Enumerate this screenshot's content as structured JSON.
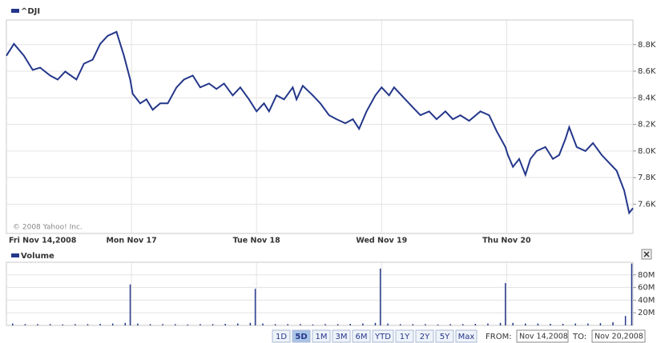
{
  "chart_data": [
    {
      "type": "line",
      "annotation": "© 2008 Yahoo! Inc.",
      "x": [
        0,
        0.06,
        0.14,
        0.21,
        0.27,
        0.35,
        0.41,
        0.47,
        0.56,
        0.62,
        0.69,
        0.75,
        0.81,
        0.88,
        0.94,
        0.99,
        1.01,
        1.07,
        1.12,
        1.17,
        1.23,
        1.29,
        1.36,
        1.42,
        1.49,
        1.55,
        1.62,
        1.68,
        1.74,
        1.81,
        1.87,
        1.94,
        2.0,
        2.06,
        2.1,
        2.16,
        2.22,
        2.29,
        2.32,
        2.37,
        2.45,
        2.51,
        2.58,
        2.64,
        2.71,
        2.77,
        2.82,
        2.88,
        2.95,
        3.0,
        3.06,
        3.1,
        3.19,
        3.25,
        3.31,
        3.38,
        3.44,
        3.51,
        3.57,
        3.63,
        3.7,
        3.79,
        3.86,
        3.92,
        3.99,
        4.01,
        4.05,
        4.1,
        4.15,
        4.19,
        4.24,
        4.31,
        4.37,
        4.42,
        4.47,
        4.5,
        4.56,
        4.63,
        4.69,
        4.76,
        4.82,
        4.88,
        4.94,
        4.98,
        5.01
      ],
      "series": [
        {
          "name": "^DJI",
          "color": "#24378a",
          "values": [
            8716,
            8806,
            8716,
            8609,
            8627,
            8567,
            8537,
            8597,
            8537,
            8657,
            8687,
            8806,
            8866,
            8896,
            8716,
            8537,
            8430,
            8358,
            8388,
            8310,
            8358,
            8358,
            8478,
            8537,
            8567,
            8478,
            8507,
            8466,
            8507,
            8418,
            8478,
            8388,
            8298,
            8358,
            8298,
            8418,
            8388,
            8478,
            8388,
            8490,
            8418,
            8358,
            8269,
            8239,
            8209,
            8239,
            8167,
            8298,
            8418,
            8478,
            8418,
            8478,
            8388,
            8328,
            8269,
            8298,
            8239,
            8298,
            8239,
            8269,
            8227,
            8298,
            8269,
            8149,
            8030,
            7970,
            7881,
            7940,
            7821,
            7940,
            8000,
            8030,
            7940,
            7970,
            8090,
            8179,
            8030,
            8000,
            8060,
            7970,
            7911,
            7851,
            7702,
            7534,
            7570
          ]
        }
      ],
      "xlim": [
        0,
        5.01
      ],
      "ylim": [
        7380,
        8985
      ],
      "xticks": [
        {
          "value": 0,
          "label": "Fri Nov 14,2008"
        },
        {
          "value": 1,
          "label": "Mon Nov 17"
        },
        {
          "value": 2,
          "label": "Tue Nov 18"
        },
        {
          "value": 3,
          "label": "Wed Nov 19"
        },
        {
          "value": 4,
          "label": "Thu Nov 20"
        }
      ],
      "yticks": [
        {
          "value": 7600,
          "label": "7.6K"
        },
        {
          "value": 7800,
          "label": "7.8K"
        },
        {
          "value": 8000,
          "label": "8.0K"
        },
        {
          "value": 8200,
          "label": "8.2K"
        },
        {
          "value": 8400,
          "label": "8.4K"
        },
        {
          "value": 8600,
          "label": "8.6K"
        },
        {
          "value": 8800,
          "label": "8.8K"
        }
      ],
      "grid": true
    },
    {
      "type": "bar",
      "x": [
        0.05,
        0.15,
        0.25,
        0.35,
        0.45,
        0.55,
        0.65,
        0.75,
        0.85,
        0.95,
        0.99,
        1.05,
        1.15,
        1.25,
        1.35,
        1.45,
        1.55,
        1.65,
        1.75,
        1.85,
        1.95,
        1.99,
        2.05,
        2.15,
        2.25,
        2.35,
        2.45,
        2.55,
        2.65,
        2.75,
        2.85,
        2.95,
        2.99,
        3.05,
        3.15,
        3.25,
        3.35,
        3.45,
        3.55,
        3.65,
        3.75,
        3.85,
        3.95,
        3.99,
        4.05,
        4.15,
        4.25,
        4.35,
        4.45,
        4.55,
        4.65,
        4.75,
        4.85,
        4.95,
        5.0
      ],
      "series": [
        {
          "name": "Volume",
          "color": "#24378a",
          "values": [
            3000000,
            2000000,
            2000000,
            2000000,
            1500000,
            2000000,
            2000000,
            2500000,
            3000000,
            4000000,
            65000000,
            3000000,
            2000000,
            2000000,
            2000000,
            1500000,
            2000000,
            2000000,
            2500000,
            3000000,
            4000000,
            58000000,
            3000000,
            2000000,
            2000000,
            2000000,
            1500000,
            2000000,
            2000000,
            2500000,
            3000000,
            4000000,
            90000000,
            3000000,
            2000000,
            2000000,
            2000000,
            1500000,
            2000000,
            2000000,
            2500000,
            3000000,
            4000000,
            67000000,
            4000000,
            3000000,
            3000000,
            2500000,
            2500000,
            3000000,
            3000000,
            3500000,
            5000000,
            15000000,
            98000000
          ]
        }
      ],
      "xlim": [
        0,
        5.01
      ],
      "ylim": [
        0,
        100000000
      ],
      "yticks": [
        {
          "value": 20000000,
          "label": "20M"
        },
        {
          "value": 40000000,
          "label": "40M"
        },
        {
          "value": 60000000,
          "label": "60M"
        },
        {
          "value": 80000000,
          "label": "80M"
        }
      ],
      "grid": true
    }
  ],
  "controls": {
    "range_buttons": [
      "1D",
      "5D",
      "1M",
      "3M",
      "6M",
      "YTD",
      "1Y",
      "2Y",
      "5Y",
      "Max"
    ],
    "selected": "5D",
    "from_label": "FROM:",
    "from_value": "Nov 14,2008",
    "to_label": "TO:",
    "to_value": "Nov 20,2008"
  }
}
